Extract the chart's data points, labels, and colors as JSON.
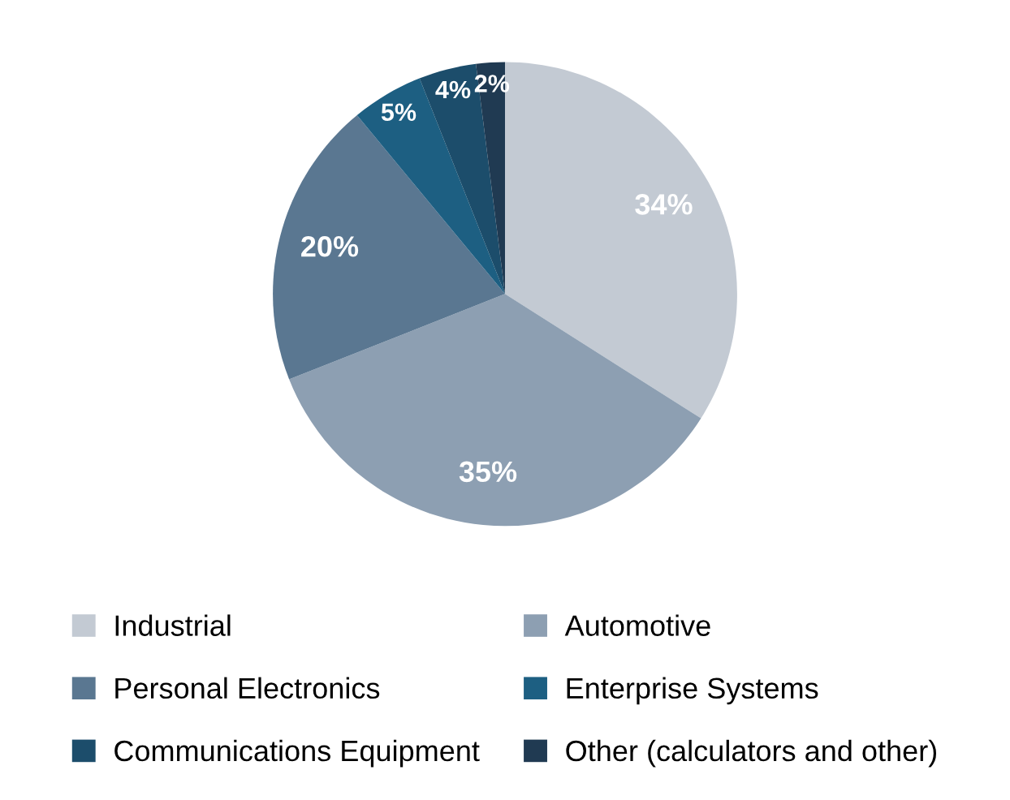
{
  "chart_data": {
    "type": "pie",
    "categories": [
      "Industrial",
      "Automotive",
      "Personal Electronics",
      "Enterprise Systems",
      "Communications Equipment",
      "Other (calculators and other)"
    ],
    "values": [
      34,
      35,
      20,
      5,
      4,
      2
    ],
    "colors": [
      "#c3cad3",
      "#8d9fb2",
      "#5a7791",
      "#1d5f82",
      "#1c4d6b",
      "#203a52"
    ],
    "value_labels": [
      "34%",
      "35%",
      "20%",
      "5%",
      "4%",
      "2%"
    ],
    "legend": "bottom"
  }
}
